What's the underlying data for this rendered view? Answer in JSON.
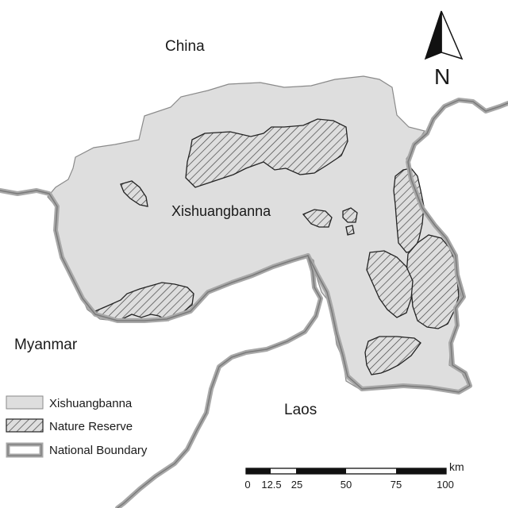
{
  "map": {
    "labels": {
      "china": "China",
      "myanmar": "Myanmar",
      "laos": "Laos",
      "region": "Xishuangbanna"
    },
    "north_arrow": {
      "label": "N"
    },
    "legend": {
      "items": [
        {
          "label": "Xishuangbanna",
          "symbol": "gray-fill"
        },
        {
          "label": "Nature Reserve",
          "symbol": "hatched"
        },
        {
          "label": "National Boundary",
          "symbol": "double-gray-line"
        }
      ]
    },
    "scale_bar": {
      "unit": "km",
      "ticks": [
        "0",
        "12.5",
        "25",
        "50",
        "75",
        "100"
      ]
    },
    "colors": {
      "region_fill": "#dedede",
      "region_outline": "#8a8a8a",
      "hatch": "#444444",
      "boundary_outer": "#a8a8a8",
      "boundary_inner": "#7a7a7a",
      "text": "#1a1a1a"
    }
  }
}
